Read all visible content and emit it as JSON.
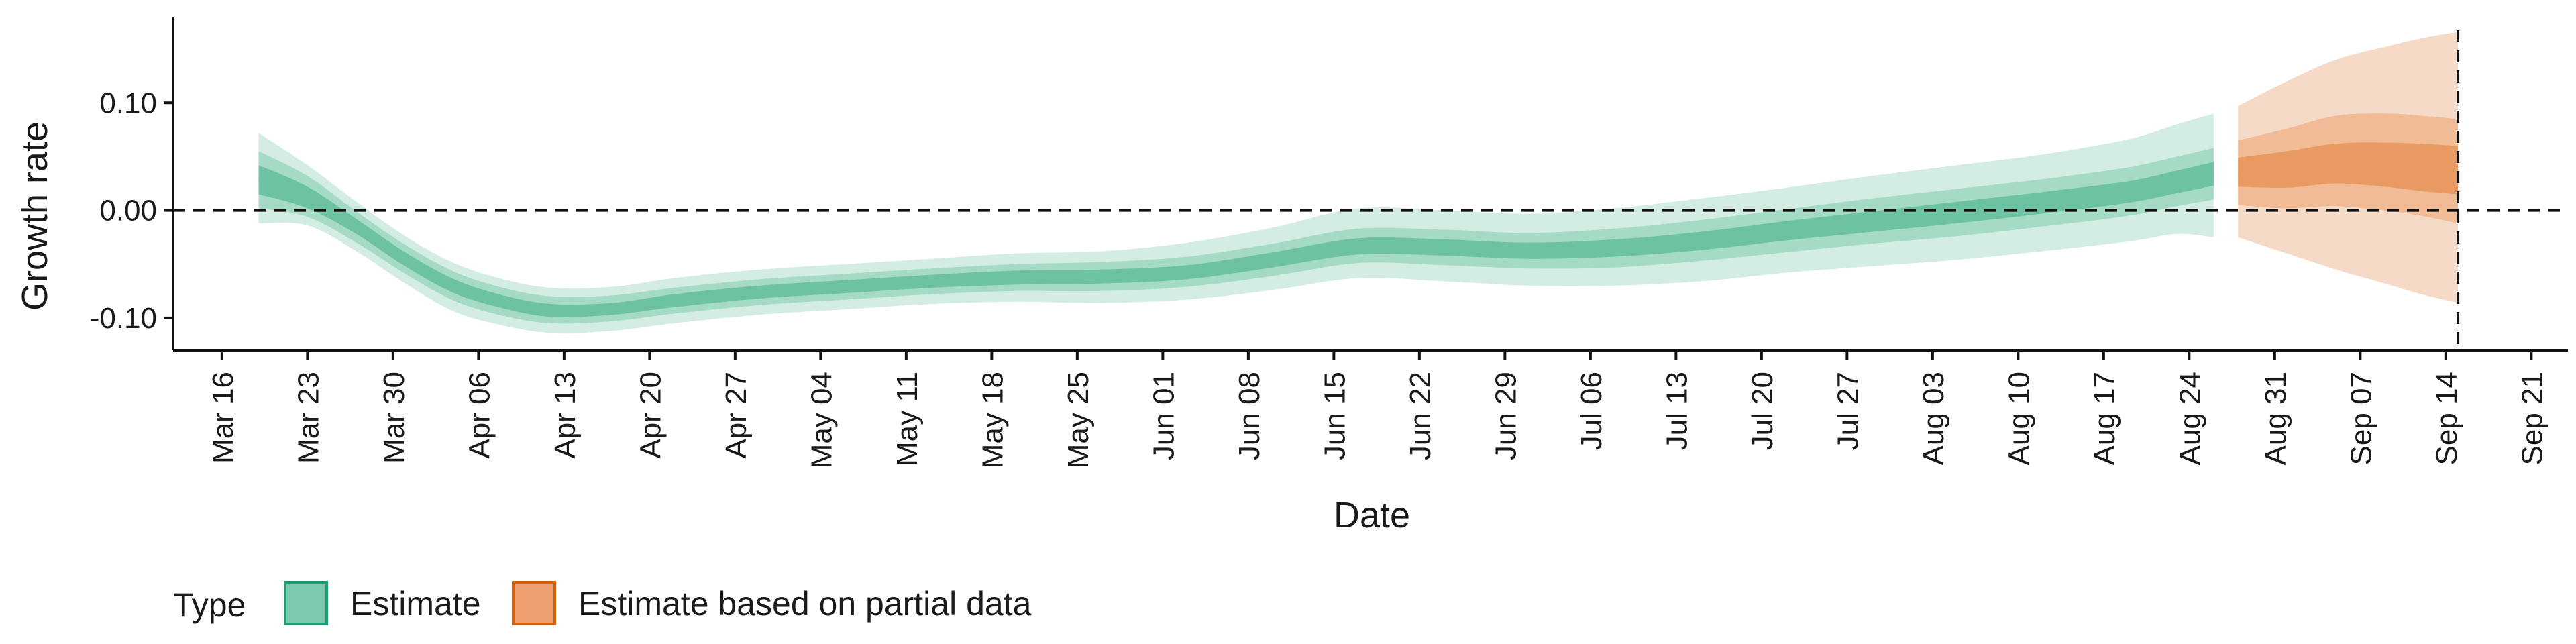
{
  "chart_data": {
    "type": "area",
    "xlabel": "Date",
    "ylabel": "Growth rate",
    "y_ticks": [
      {
        "value": -0.1,
        "label": "-0.10"
      },
      {
        "value": 0.0,
        "label": "0.00"
      },
      {
        "value": 0.1,
        "label": "0.10"
      }
    ],
    "ylim": [
      -0.13,
      0.18
    ],
    "xlim": [
      "2020-03-12",
      "2020-09-24"
    ],
    "x_ticks": [
      {
        "date": "2020-03-16",
        "label": "Mar 16"
      },
      {
        "date": "2020-03-23",
        "label": "Mar 23"
      },
      {
        "date": "2020-03-30",
        "label": "Mar 30"
      },
      {
        "date": "2020-04-06",
        "label": "Apr 06"
      },
      {
        "date": "2020-04-13",
        "label": "Apr 13"
      },
      {
        "date": "2020-04-20",
        "label": "Apr 20"
      },
      {
        "date": "2020-04-27",
        "label": "Apr 27"
      },
      {
        "date": "2020-05-04",
        "label": "May 04"
      },
      {
        "date": "2020-05-11",
        "label": "May 11"
      },
      {
        "date": "2020-05-18",
        "label": "May 18"
      },
      {
        "date": "2020-05-25",
        "label": "May 25"
      },
      {
        "date": "2020-06-01",
        "label": "Jun 01"
      },
      {
        "date": "2020-06-08",
        "label": "Jun 08"
      },
      {
        "date": "2020-06-15",
        "label": "Jun 15"
      },
      {
        "date": "2020-06-22",
        "label": "Jun 22"
      },
      {
        "date": "2020-06-29",
        "label": "Jun 29"
      },
      {
        "date": "2020-07-06",
        "label": "Jul 06"
      },
      {
        "date": "2020-07-13",
        "label": "Jul 13"
      },
      {
        "date": "2020-07-20",
        "label": "Jul 20"
      },
      {
        "date": "2020-07-27",
        "label": "Jul 27"
      },
      {
        "date": "2020-08-03",
        "label": "Aug 03"
      },
      {
        "date": "2020-08-10",
        "label": "Aug 10"
      },
      {
        "date": "2020-08-17",
        "label": "Aug 17"
      },
      {
        "date": "2020-08-24",
        "label": "Aug 24"
      },
      {
        "date": "2020-08-31",
        "label": "Aug 31"
      },
      {
        "date": "2020-09-07",
        "label": "Sep 07"
      },
      {
        "date": "2020-09-14",
        "label": "Sep 14"
      },
      {
        "date": "2020-09-21",
        "label": "Sep 21"
      }
    ],
    "reference_lines": {
      "horizontal_y": 0.0,
      "vertical_date": "2020-09-15"
    },
    "grid": false,
    "legend": {
      "title": "Type",
      "position": "bottom-left",
      "items": [
        {
          "label": "Estimate",
          "fill": "#7ccaae",
          "stroke": "#1b9e77"
        },
        {
          "label": "Estimate based on partial data",
          "fill": "#eda06d",
          "stroke": "#d95f02"
        }
      ]
    },
    "series": [
      {
        "name": "Estimate",
        "colors": {
          "outer": "#d3ede3",
          "middle": "#a5dac5",
          "inner": "#6dc2a2"
        },
        "points": [
          {
            "date": "2020-03-19",
            "mid": 0.03,
            "i_lo": 0.015,
            "i_hi": 0.042,
            "m_lo": 0.002,
            "m_hi": 0.055,
            "o_lo": -0.012,
            "o_hi": 0.072
          },
          {
            "date": "2020-03-23",
            "mid": 0.012,
            "i_lo": 0.002,
            "i_hi": 0.022,
            "m_lo": -0.006,
            "m_hi": 0.032,
            "o_lo": -0.014,
            "o_hi": 0.042
          },
          {
            "date": "2020-03-27",
            "mid": -0.015,
            "i_lo": -0.022,
            "i_hi": -0.008,
            "m_lo": -0.03,
            "m_hi": -0.001,
            "o_lo": -0.038,
            "o_hi": 0.008
          },
          {
            "date": "2020-03-31",
            "mid": -0.045,
            "i_lo": -0.052,
            "i_hi": -0.039,
            "m_lo": -0.059,
            "m_hi": -0.032,
            "o_lo": -0.068,
            "o_hi": -0.024
          },
          {
            "date": "2020-04-04",
            "mid": -0.07,
            "i_lo": -0.077,
            "i_hi": -0.064,
            "m_lo": -0.084,
            "m_hi": -0.057,
            "o_lo": -0.094,
            "o_hi": -0.049
          },
          {
            "date": "2020-04-08",
            "mid": -0.085,
            "i_lo": -0.091,
            "i_hi": -0.079,
            "m_lo": -0.098,
            "m_hi": -0.072,
            "o_lo": -0.107,
            "o_hi": -0.064
          },
          {
            "date": "2020-04-12",
            "mid": -0.093,
            "i_lo": -0.099,
            "i_hi": -0.087,
            "m_lo": -0.105,
            "m_hi": -0.08,
            "o_lo": -0.114,
            "o_hi": -0.072
          },
          {
            "date": "2020-04-17",
            "mid": -0.091,
            "i_lo": -0.097,
            "i_hi": -0.086,
            "m_lo": -0.103,
            "m_hi": -0.079,
            "o_lo": -0.112,
            "o_hi": -0.071
          },
          {
            "date": "2020-04-22",
            "mid": -0.084,
            "i_lo": -0.09,
            "i_hi": -0.078,
            "m_lo": -0.096,
            "m_hi": -0.072,
            "o_lo": -0.105,
            "o_hi": -0.063
          },
          {
            "date": "2020-04-29",
            "mid": -0.076,
            "i_lo": -0.082,
            "i_hi": -0.07,
            "m_lo": -0.088,
            "m_hi": -0.064,
            "o_lo": -0.097,
            "o_hi": -0.055
          },
          {
            "date": "2020-05-06",
            "mid": -0.071,
            "i_lo": -0.077,
            "i_hi": -0.065,
            "m_lo": -0.083,
            "m_hi": -0.059,
            "o_lo": -0.092,
            "o_hi": -0.05
          },
          {
            "date": "2020-05-13",
            "mid": -0.066,
            "i_lo": -0.072,
            "i_hi": -0.06,
            "m_lo": -0.078,
            "m_hi": -0.054,
            "o_lo": -0.087,
            "o_hi": -0.045
          },
          {
            "date": "2020-05-20",
            "mid": -0.062,
            "i_lo": -0.069,
            "i_hi": -0.056,
            "m_lo": -0.075,
            "m_hi": -0.05,
            "o_lo": -0.085,
            "o_hi": -0.04
          },
          {
            "date": "2020-05-27",
            "mid": -0.061,
            "i_lo": -0.068,
            "i_hi": -0.055,
            "m_lo": -0.075,
            "m_hi": -0.048,
            "o_lo": -0.086,
            "o_hi": -0.038
          },
          {
            "date": "2020-06-03",
            "mid": -0.057,
            "i_lo": -0.064,
            "i_hi": -0.051,
            "m_lo": -0.071,
            "m_hi": -0.043,
            "o_lo": -0.083,
            "o_hi": -0.03
          },
          {
            "date": "2020-06-10",
            "mid": -0.046,
            "i_lo": -0.053,
            "i_hi": -0.039,
            "m_lo": -0.061,
            "m_hi": -0.031,
            "o_lo": -0.074,
            "o_hi": -0.016
          },
          {
            "date": "2020-06-17",
            "mid": -0.033,
            "i_lo": -0.041,
            "i_hi": -0.026,
            "m_lo": -0.049,
            "m_hi": -0.017,
            "o_lo": -0.063,
            "o_hi": 0.002
          },
          {
            "date": "2020-06-24",
            "mid": -0.034,
            "i_lo": -0.042,
            "i_hi": -0.027,
            "m_lo": -0.051,
            "m_hi": -0.018,
            "o_lo": -0.066,
            "o_hi": 0.0
          },
          {
            "date": "2020-07-01",
            "mid": -0.037,
            "i_lo": -0.045,
            "i_hi": -0.03,
            "m_lo": -0.054,
            "m_hi": -0.021,
            "o_lo": -0.07,
            "o_hi": -0.003
          },
          {
            "date": "2020-07-08",
            "mid": -0.035,
            "i_lo": -0.043,
            "i_hi": -0.027,
            "m_lo": -0.053,
            "m_hi": -0.017,
            "o_lo": -0.07,
            "o_hi": 0.002
          },
          {
            "date": "2020-07-15",
            "mid": -0.028,
            "i_lo": -0.037,
            "i_hi": -0.02,
            "m_lo": -0.047,
            "m_hi": -0.009,
            "o_lo": -0.066,
            "o_hi": 0.011
          },
          {
            "date": "2020-07-22",
            "mid": -0.019,
            "i_lo": -0.028,
            "i_hi": -0.01,
            "m_lo": -0.039,
            "m_hi": 0.001,
            "o_lo": -0.058,
            "o_hi": 0.021
          },
          {
            "date": "2020-07-29",
            "mid": -0.01,
            "i_lo": -0.02,
            "i_hi": -0.001,
            "m_lo": -0.031,
            "m_hi": 0.011,
            "o_lo": -0.052,
            "o_hi": 0.032
          },
          {
            "date": "2020-08-05",
            "mid": -0.002,
            "i_lo": -0.012,
            "i_hi": 0.008,
            "m_lo": -0.024,
            "m_hi": 0.02,
            "o_lo": -0.046,
            "o_hi": 0.042
          },
          {
            "date": "2020-08-12",
            "mid": 0.007,
            "i_lo": -0.003,
            "i_hi": 0.017,
            "m_lo": -0.015,
            "m_hi": 0.029,
            "o_lo": -0.038,
            "o_hi": 0.052
          },
          {
            "date": "2020-08-19",
            "mid": 0.017,
            "i_lo": 0.007,
            "i_hi": 0.027,
            "m_lo": -0.005,
            "m_hi": 0.04,
            "o_lo": -0.029,
            "o_hi": 0.066
          },
          {
            "date": "2020-08-23",
            "mid": 0.027,
            "i_lo": 0.016,
            "i_hi": 0.037,
            "m_lo": 0.004,
            "m_hi": 0.05,
            "o_lo": -0.022,
            "o_hi": 0.08
          },
          {
            "date": "2020-08-26",
            "mid": 0.034,
            "i_lo": 0.023,
            "i_hi": 0.045,
            "m_lo": 0.01,
            "m_hi": 0.058,
            "o_lo": -0.025,
            "o_hi": 0.09
          }
        ]
      },
      {
        "name": "Estimate based on partial data",
        "colors": {
          "outer": "#f6dac8",
          "middle": "#f1bb96",
          "inner": "#e89a62"
        },
        "points": [
          {
            "date": "2020-08-28",
            "mid": 0.035,
            "i_lo": 0.022,
            "i_hi": 0.049,
            "m_lo": 0.005,
            "m_hi": 0.065,
            "o_lo": -0.025,
            "o_hi": 0.097
          },
          {
            "date": "2020-09-01",
            "mid": 0.037,
            "i_lo": 0.021,
            "i_hi": 0.055,
            "m_lo": 0.002,
            "m_hi": 0.076,
            "o_lo": -0.04,
            "o_hi": 0.12
          },
          {
            "date": "2020-09-05",
            "mid": 0.045,
            "i_lo": 0.025,
            "i_hi": 0.062,
            "m_lo": 0.004,
            "m_hi": 0.088,
            "o_lo": -0.055,
            "o_hi": 0.14
          },
          {
            "date": "2020-09-09",
            "mid": 0.044,
            "i_lo": 0.022,
            "i_hi": 0.063,
            "m_lo": 0.0,
            "m_hi": 0.09,
            "o_lo": -0.068,
            "o_hi": 0.152
          },
          {
            "date": "2020-09-12",
            "mid": 0.04,
            "i_lo": 0.018,
            "i_hi": 0.062,
            "m_lo": -0.005,
            "m_hi": 0.088,
            "o_lo": -0.078,
            "o_hi": 0.16
          },
          {
            "date": "2020-09-15",
            "mid": 0.037,
            "i_lo": 0.015,
            "i_hi": 0.06,
            "m_lo": -0.012,
            "m_hi": 0.085,
            "o_lo": -0.086,
            "o_hi": 0.166
          }
        ]
      }
    ]
  }
}
